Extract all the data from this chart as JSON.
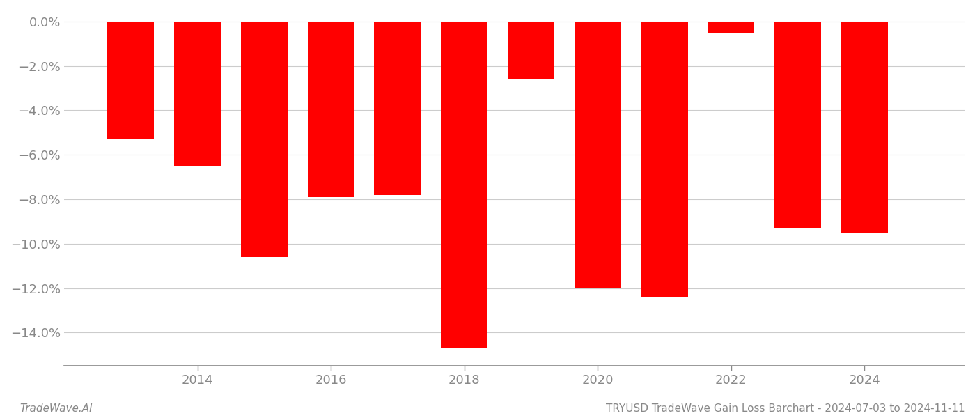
{
  "years": [
    2013,
    2014,
    2015,
    2016,
    2017,
    2018,
    2019,
    2020,
    2021,
    2022,
    2023,
    2024
  ],
  "values": [
    -0.053,
    -0.065,
    -0.106,
    -0.079,
    -0.078,
    -0.147,
    -0.026,
    -0.12,
    -0.124,
    -0.005,
    -0.093,
    -0.095
  ],
  "bar_color": "#ff0000",
  "background_color": "#ffffff",
  "grid_color": "#cccccc",
  "axis_color": "#888888",
  "tick_label_color": "#888888",
  "ylim": [
    -0.155,
    0.005
  ],
  "yticks": [
    0.0,
    -0.02,
    -0.04,
    -0.06,
    -0.08,
    -0.1,
    -0.12,
    -0.14
  ],
  "ytick_labels": [
    "0.0%",
    "−2.0%",
    "−4.0%",
    "−6.0%",
    "−8.0%",
    "−10.0%",
    "−12.0%",
    "−14.0%"
  ],
  "xlim": [
    2012.0,
    2025.5
  ],
  "xticks": [
    2014,
    2016,
    2018,
    2020,
    2022,
    2024
  ],
  "footer_left": "TradeWave.AI",
  "footer_right": "TRYUSD TradeWave Gain Loss Barchart - 2024-07-03 to 2024-11-11",
  "footer_fontsize": 11,
  "tick_fontsize": 13,
  "bar_width": 0.7
}
